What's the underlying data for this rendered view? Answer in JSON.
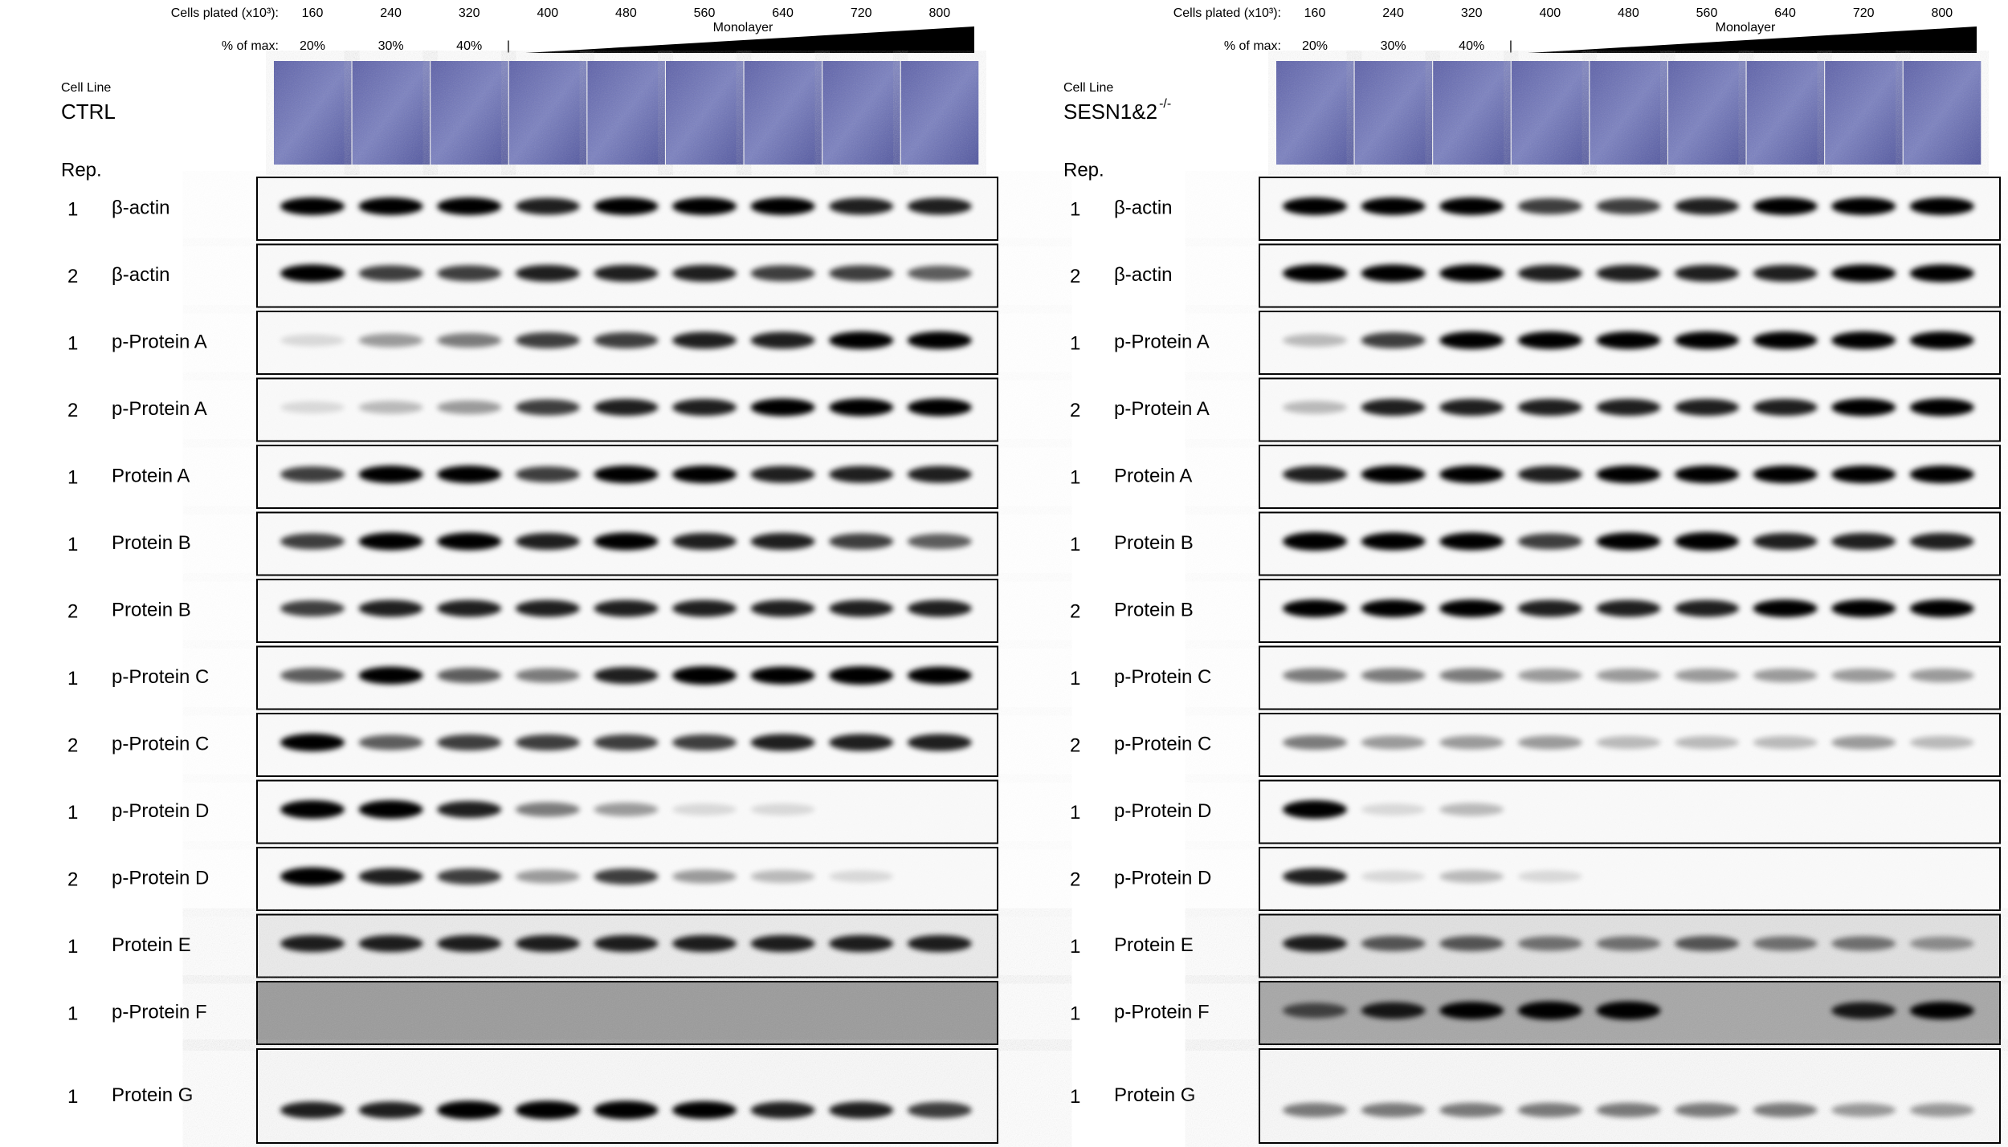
{
  "panels": [
    {
      "cells_plated_label": "Cells plated (x10³):",
      "cells_plated": [
        160,
        240,
        320,
        400,
        480,
        560,
        640,
        720,
        800
      ],
      "percent_label": "% of max:",
      "percents": [
        "20%",
        "30%",
        "40%"
      ],
      "divider": "|",
      "monolayer": "Monolayer",
      "cell_line_label": "Cell Line",
      "cell_line": "CTRL",
      "rep_label": "Rep.",
      "rows": [
        {
          "rep": 1,
          "protein": "β-actin"
        },
        {
          "rep": 2,
          "protein": "β-actin"
        },
        {
          "rep": 1,
          "protein": "p-Protein A"
        },
        {
          "rep": 2,
          "protein": "p-Protein A"
        },
        {
          "rep": 1,
          "protein": "Protein A"
        },
        {
          "rep": 1,
          "protein": "Protein B"
        },
        {
          "rep": 2,
          "protein": "Protein B"
        },
        {
          "rep": 1,
          "protein": "p-Protein C"
        },
        {
          "rep": 2,
          "protein": "p-Protein C"
        },
        {
          "rep": 1,
          "protein": "p-Protein D"
        },
        {
          "rep": 2,
          "protein": "p-Protein D"
        },
        {
          "rep": 1,
          "protein": "Protein E"
        },
        {
          "rep": 1,
          "protein": "p-Protein F"
        },
        {
          "rep": 1,
          "protein": "Protein G"
        }
      ]
    },
    {
      "cells_plated_label": "Cells plated (x10³):",
      "cells_plated": [
        160,
        240,
        320,
        400,
        480,
        560,
        640,
        720,
        800
      ],
      "percent_label": "% of max:",
      "percents": [
        "20%",
        "30%",
        "40%"
      ],
      "divider": "|",
      "monolayer": "Monolayer",
      "cell_line_label": "Cell Line",
      "cell_line": "SESN1&2",
      "cell_line_superscript": "-/-",
      "rep_label": "Rep.",
      "rows": [
        {
          "rep": 1,
          "protein": "β-actin"
        },
        {
          "rep": 2,
          "protein": "β-actin"
        },
        {
          "rep": 1,
          "protein": "p-Protein A"
        },
        {
          "rep": 2,
          "protein": "p-Protein A"
        },
        {
          "rep": 1,
          "protein": "Protein A"
        },
        {
          "rep": 1,
          "protein": "Protein B"
        },
        {
          "rep": 2,
          "protein": "Protein B"
        },
        {
          "rep": 1,
          "protein": "p-Protein C"
        },
        {
          "rep": 2,
          "protein": "p-Protein C"
        },
        {
          "rep": 1,
          "protein": "p-Protein D"
        },
        {
          "rep": 2,
          "protein": "p-Protein D"
        },
        {
          "rep": 1,
          "protein": "Protein E"
        },
        {
          "rep": 1,
          "protein": "p-Protein F"
        },
        {
          "rep": 1,
          "protein": "Protein G"
        }
      ]
    }
  ]
}
